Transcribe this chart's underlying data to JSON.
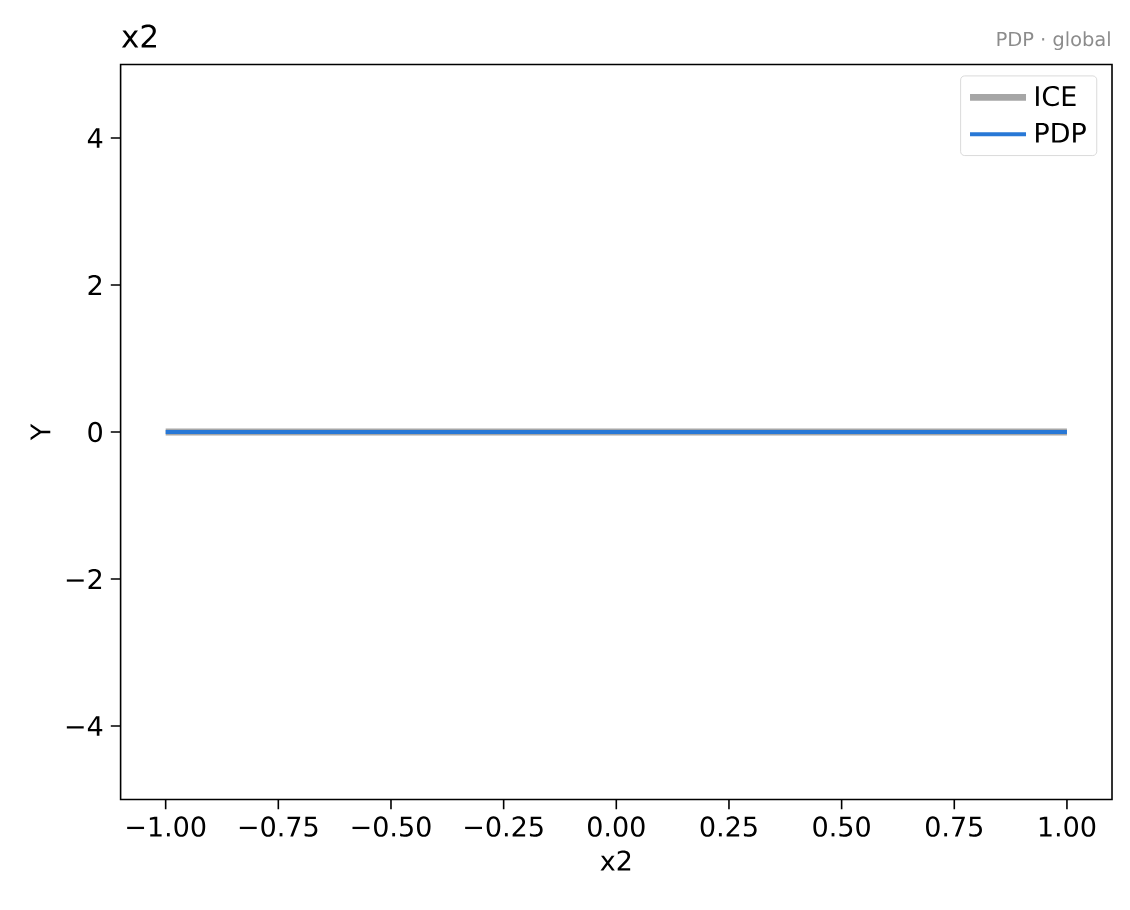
{
  "chart_data": {
    "type": "line",
    "title": "x2",
    "xlabel": "x2",
    "ylabel": "Y",
    "annotations": [
      "PDP · global"
    ],
    "x": [
      -1,
      1
    ],
    "series": [
      {
        "name": "ICE",
        "color": "#a6a6a6",
        "values": [
          0,
          0
        ]
      },
      {
        "name": "PDP",
        "color": "#2878d6",
        "values": [
          0,
          0
        ]
      }
    ],
    "xlim": [
      -1.1,
      1.1
    ],
    "ylim": [
      -5,
      5
    ],
    "xticks": [
      {
        "value": -1,
        "label": "−1.00"
      },
      {
        "value": -0.75,
        "label": "−0.75"
      },
      {
        "value": -0.5,
        "label": "−0.50"
      },
      {
        "value": -0.25,
        "label": "−0.25"
      },
      {
        "value": 0,
        "label": "0.00"
      },
      {
        "value": 0.25,
        "label": "0.25"
      },
      {
        "value": 0.5,
        "label": "0.50"
      },
      {
        "value": 0.75,
        "label": "0.75"
      },
      {
        "value": 1,
        "label": "1.00"
      }
    ],
    "yticks": [
      {
        "value": -4,
        "label": "−4"
      },
      {
        "value": -2,
        "label": "−2"
      },
      0,
      2,
      4
    ],
    "legend": "top right",
    "line_style": "solid"
  }
}
